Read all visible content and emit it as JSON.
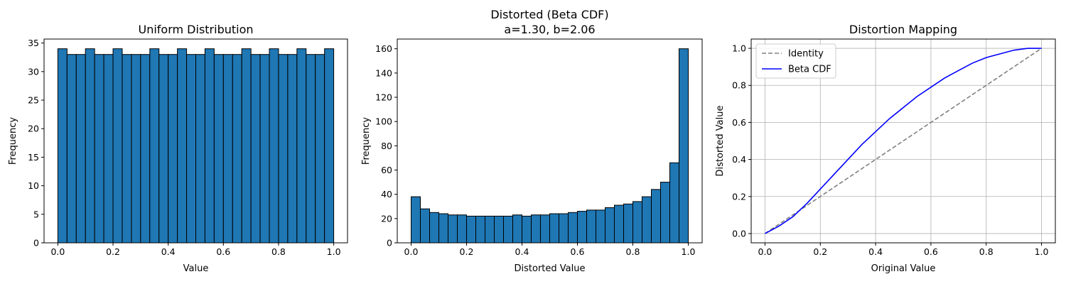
{
  "chart_data": [
    {
      "type": "bar",
      "title": "Uniform Distribution",
      "xlabel": "Value",
      "ylabel": "Frequency",
      "xlim": [
        -0.05,
        1.05
      ],
      "ylim": [
        0,
        35.7
      ],
      "xticks": [
        0.0,
        0.2,
        0.4,
        0.6,
        0.8,
        1.0
      ],
      "yticks": [
        0,
        5,
        10,
        15,
        20,
        25,
        30,
        35
      ],
      "bin_range": [
        0,
        1
      ],
      "values": [
        34,
        33,
        33,
        34,
        33,
        33,
        34,
        33,
        33,
        33,
        34,
        33,
        33,
        34,
        33,
        33,
        34,
        33,
        33,
        33,
        34,
        33,
        33,
        34,
        33,
        33,
        34,
        33,
        33,
        34
      ],
      "bar_color": "#1f77b4",
      "edge_color": "#000000",
      "grid": false
    },
    {
      "type": "bar",
      "title": "Distorted (Beta CDF)",
      "subtitle": "a=1.30, b=2.06",
      "xlabel": "Distorted Value",
      "ylabel": "Frequency",
      "xlim": [
        -0.05,
        1.05
      ],
      "ylim": [
        0,
        168
      ],
      "xticks": [
        0.0,
        0.2,
        0.4,
        0.6,
        0.8,
        1.0
      ],
      "yticks": [
        0,
        20,
        40,
        60,
        80,
        100,
        120,
        140,
        160
      ],
      "bin_range": [
        0,
        1
      ],
      "values": [
        38,
        28,
        25,
        24,
        23,
        23,
        22,
        22,
        22,
        22,
        22,
        23,
        22,
        23,
        23,
        24,
        24,
        25,
        26,
        27,
        27,
        29,
        31,
        32,
        34,
        38,
        44,
        50,
        66,
        160
      ],
      "bar_color": "#1f77b4",
      "edge_color": "#000000",
      "grid": false
    },
    {
      "type": "line",
      "title": "Distortion Mapping",
      "xlabel": "Original Value",
      "ylabel": "Distorted Value",
      "xlim": [
        -0.05,
        1.05
      ],
      "ylim": [
        -0.05,
        1.05
      ],
      "xticks": [
        0.0,
        0.2,
        0.4,
        0.6,
        0.8,
        1.0
      ],
      "yticks": [
        0.0,
        0.2,
        0.4,
        0.6,
        0.8,
        1.0
      ],
      "grid": true,
      "legend_position": "top-left",
      "series": [
        {
          "name": "Identity",
          "color": "#808080",
          "style": "dashed",
          "x": [
            0.0,
            1.0
          ],
          "y": [
            0.0,
            1.0
          ]
        },
        {
          "name": "Beta CDF",
          "color": "#0000ff",
          "style": "solid",
          "x": [
            0.0,
            0.05,
            0.1,
            0.15,
            0.2,
            0.25,
            0.3,
            0.35,
            0.4,
            0.45,
            0.5,
            0.55,
            0.6,
            0.65,
            0.7,
            0.75,
            0.8,
            0.85,
            0.9,
            0.95,
            1.0
          ],
          "y": [
            0.0,
            0.04,
            0.09,
            0.16,
            0.24,
            0.32,
            0.4,
            0.48,
            0.55,
            0.62,
            0.68,
            0.74,
            0.79,
            0.84,
            0.88,
            0.92,
            0.95,
            0.97,
            0.99,
            1.0,
            1.0
          ]
        }
      ]
    }
  ]
}
